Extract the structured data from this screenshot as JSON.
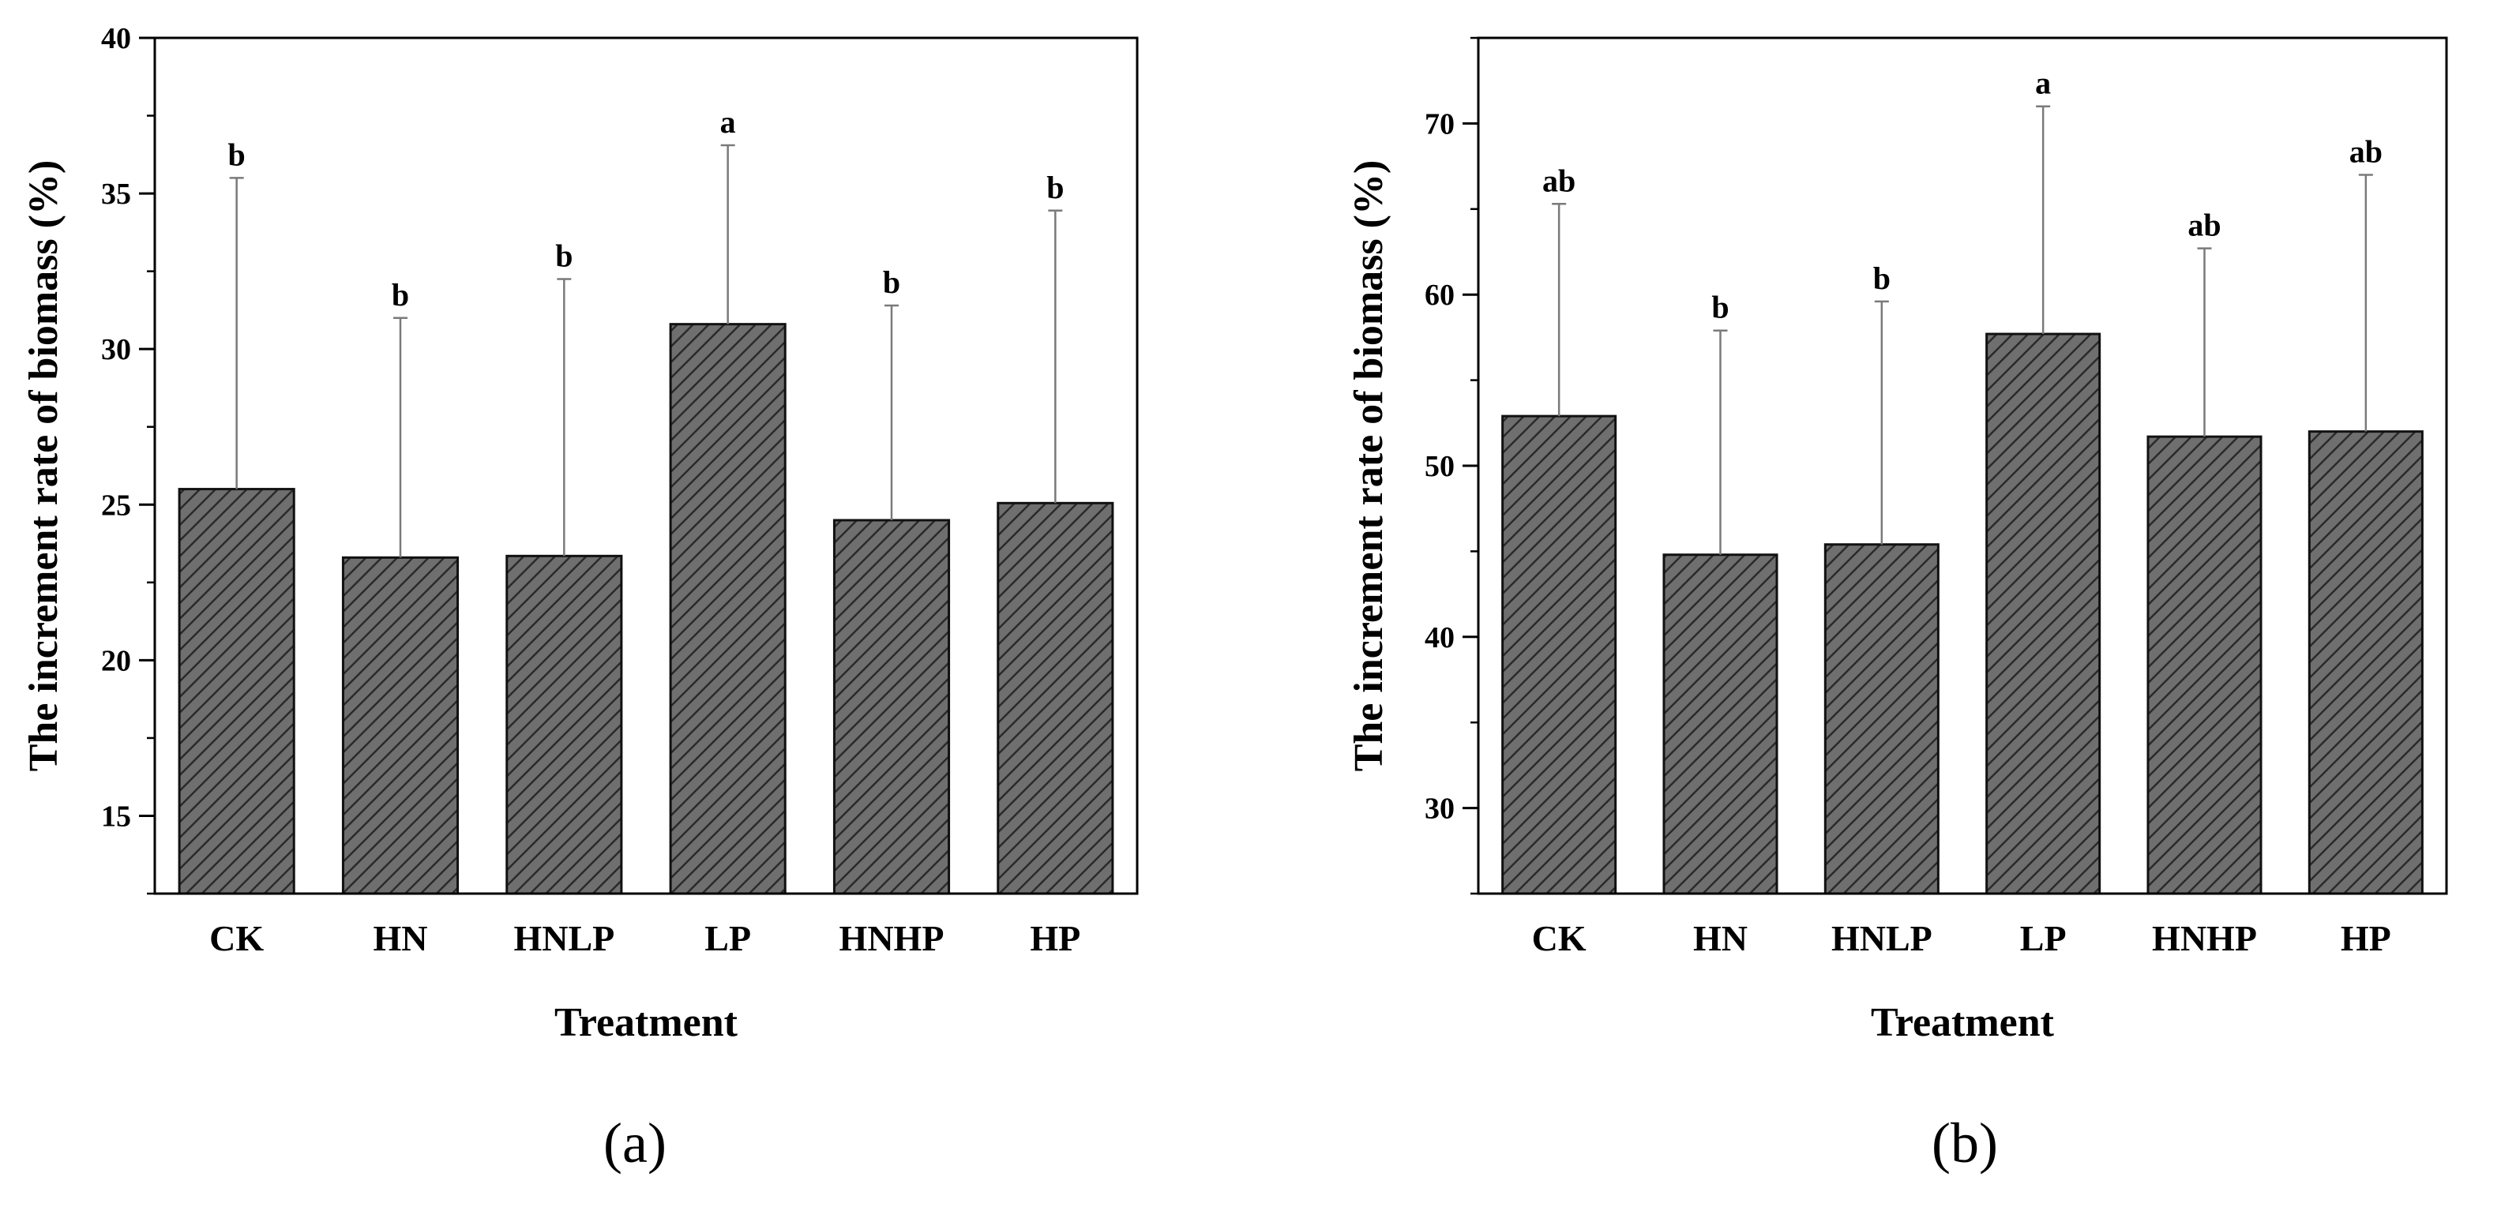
{
  "chart_data": [
    {
      "type": "bar",
      "panel_label": "(a)",
      "xlabel": "Treatment",
      "ylabel": "The increment rate of biomass (%)",
      "categories": [
        "CK",
        "HN",
        "HNLP",
        "LP",
        "HNHP",
        "HP"
      ],
      "values": [
        25.5,
        23.3,
        23.35,
        30.8,
        24.5,
        25.05
      ],
      "errors": [
        10.0,
        7.7,
        8.9,
        5.75,
        6.9,
        9.4
      ],
      "significance": [
        "b",
        "b",
        "b",
        "a",
        "b",
        "b"
      ],
      "ylim": [
        12.5,
        40
      ],
      "yticks": [
        15,
        20,
        25,
        30,
        35,
        40
      ],
      "yminor_step": 2.5,
      "grid": false
    },
    {
      "type": "bar",
      "panel_label": "(b)",
      "xlabel": "Treatment",
      "ylabel": "The increment rate of biomass (%)",
      "categories": [
        "CK",
        "HN",
        "HNLP",
        "LP",
        "HNHP",
        "HP"
      ],
      "values": [
        52.9,
        44.8,
        45.4,
        57.7,
        51.7,
        52.0
      ],
      "errors": [
        12.4,
        13.1,
        14.2,
        13.3,
        11.0,
        15.0
      ],
      "significance": [
        "ab",
        "b",
        "b",
        "a",
        "ab",
        "ab"
      ],
      "ylim": [
        25,
        75
      ],
      "yticks": [
        30,
        40,
        50,
        60,
        70
      ],
      "yminor_step": 5,
      "grid": false
    }
  ],
  "colors": {
    "bar_fill": "#6f6f6f",
    "hatch": "#2a2a2a",
    "bar_edge": "#111111",
    "axis": "#000000",
    "error_bar": "#7a7a7a"
  }
}
